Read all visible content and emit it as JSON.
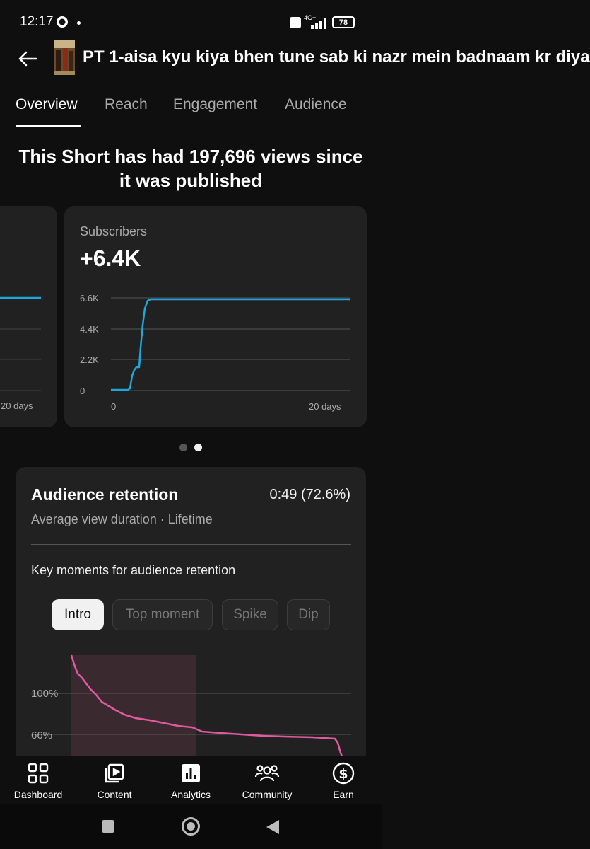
{
  "status": {
    "time": "12:17",
    "battery": "78",
    "network": "4G+"
  },
  "header": {
    "title": "PT 1-aisa kyu kiya bhen tune sab ki nazr mein badnaam kr diya"
  },
  "tabs": [
    {
      "label": "Overview",
      "active": true
    },
    {
      "label": "Reach",
      "active": false
    },
    {
      "label": "Engagement",
      "active": false
    },
    {
      "label": "Audience",
      "active": false
    }
  ],
  "headline": "This Short has had 197,696 views since it was published",
  "left_card": {
    "x_end_label": "20 days"
  },
  "subscribers_card": {
    "label": "Subscribers",
    "value": "+6.4K",
    "y_ticks": [
      "6.6K",
      "4.4K",
      "2.2K",
      "0"
    ],
    "x_ticks": [
      "0",
      "20 days"
    ],
    "line_color": "#1ea7dc"
  },
  "pagination": {
    "count": 2,
    "active_index": 1
  },
  "retention": {
    "title": "Audience retention",
    "value": "0:49 (72.6%)",
    "subtitle": "Average view duration · Lifetime",
    "key_moments_label": "Key moments for audience retention",
    "chips": [
      {
        "label": "Intro",
        "active": true
      },
      {
        "label": "Top moment",
        "active": false
      },
      {
        "label": "Spike",
        "active": false
      },
      {
        "label": "Dip",
        "active": false
      }
    ],
    "y_ticks": [
      "100%",
      "66%"
    ],
    "line_color": "#e05a9e"
  },
  "bottom_nav": [
    {
      "label": "Dashboard",
      "icon": "dashboard-icon",
      "active": false
    },
    {
      "label": "Content",
      "icon": "content-icon",
      "active": false
    },
    {
      "label": "Analytics",
      "icon": "analytics-icon",
      "active": true
    },
    {
      "label": "Community",
      "icon": "community-icon",
      "active": false
    },
    {
      "label": "Earn",
      "icon": "earn-icon",
      "active": false
    }
  ]
}
